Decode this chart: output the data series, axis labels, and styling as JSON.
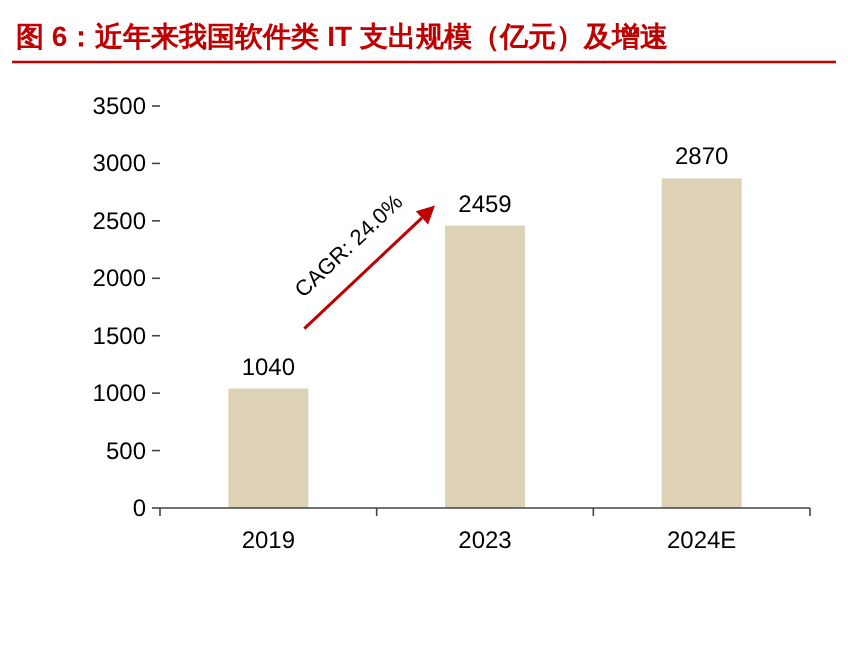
{
  "chart_data": {
    "type": "bar",
    "title": "图 6：近年来我国软件类 IT 支出规模（亿元）及增速",
    "categories": [
      "2019",
      "2023",
      "2024E"
    ],
    "values": [
      1040,
      2459,
      2870
    ],
    "color": "#ded2b6",
    "ylim": [
      0,
      3500
    ],
    "yticks": [
      0,
      500,
      1000,
      1500,
      2000,
      2500,
      3000,
      3500
    ],
    "data_labels": true,
    "annotations": [
      "CAGR: 24.0%"
    ]
  }
}
